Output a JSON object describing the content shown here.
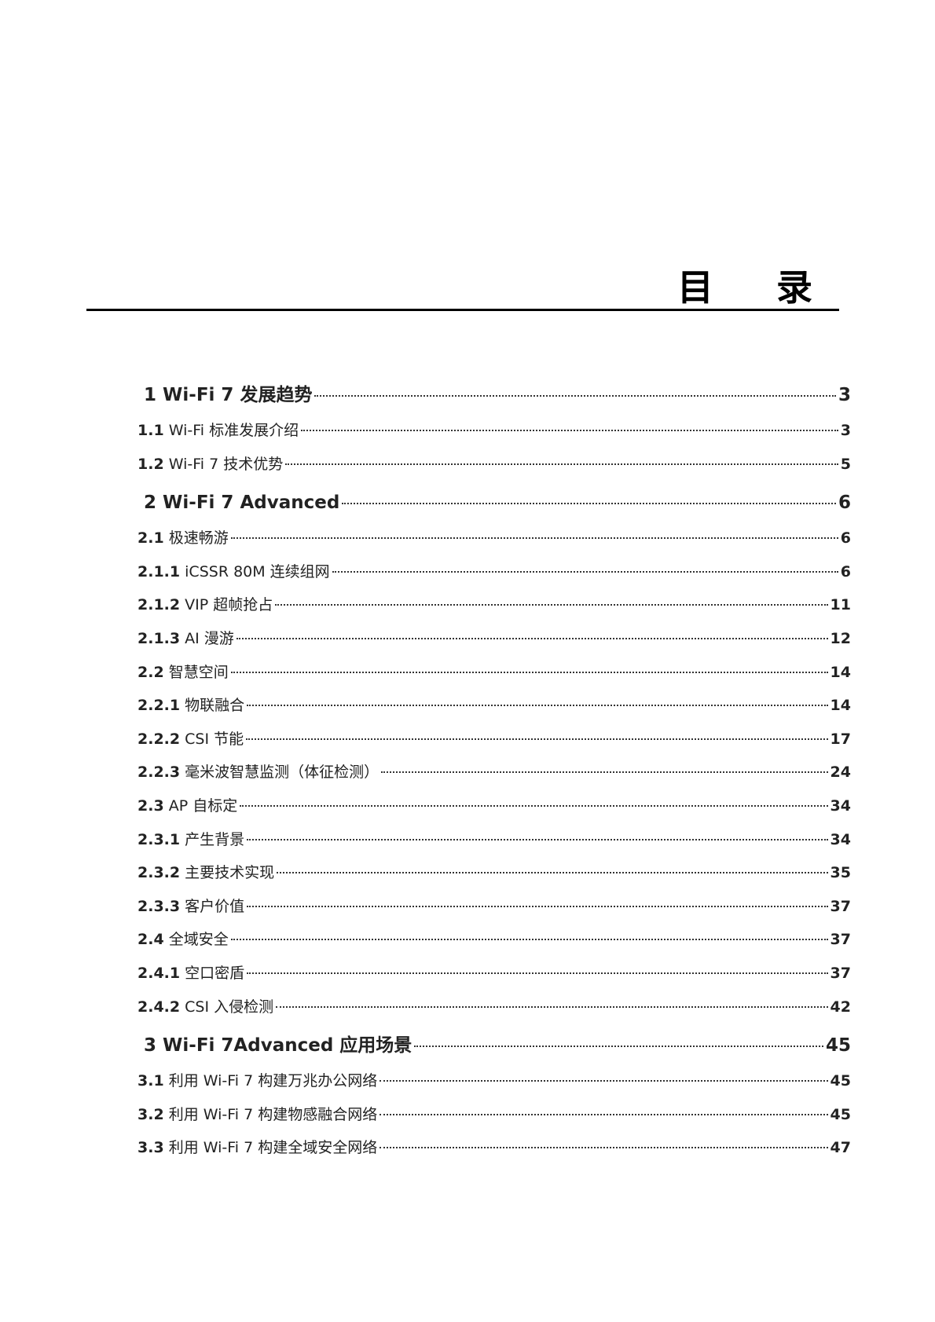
{
  "title": "目 录",
  "entries": [
    {
      "num": "1",
      "text": "Wi-Fi 7 发展趋势",
      "page": "3",
      "level": 1
    },
    {
      "num": "1.1",
      "text": "Wi-Fi 标准发展介绍",
      "page": "3",
      "level": 2
    },
    {
      "num": "1.2",
      "text": "Wi-Fi 7 技术优势",
      "page": "5",
      "level": 2
    },
    {
      "num": "2",
      "text": "Wi-Fi 7 Advanced",
      "page": "6",
      "level": 1
    },
    {
      "num": "2.1",
      "text": "极速畅游",
      "page": "6",
      "level": 2
    },
    {
      "num": "2.1.1",
      "text": "iCSSR 80M 连续组网",
      "page": "6",
      "level": 3
    },
    {
      "num": "2.1.2",
      "text": "VIP 超帧抢占",
      "page": "11",
      "level": 3
    },
    {
      "num": "2.1.3",
      "text": "AI 漫游",
      "page": "12",
      "level": 3
    },
    {
      "num": "2.2",
      "text": "智慧空间",
      "page": "14",
      "level": 2
    },
    {
      "num": "2.2.1",
      "text": "物联融合",
      "page": "14",
      "level": 3
    },
    {
      "num": "2.2.2",
      "text": "CSI 节能",
      "page": "17",
      "level": 3
    },
    {
      "num": "2.2.3",
      "text": "毫米波智慧监测（体征检测）",
      "page": "24",
      "level": 3
    },
    {
      "num": "2.3",
      "text": "AP 自标定",
      "page": "34",
      "level": 2
    },
    {
      "num": "2.3.1",
      "text": "产生背景",
      "page": "34",
      "level": 3
    },
    {
      "num": "2.3.2",
      "text": "主要技术实现",
      "page": "35",
      "level": 3
    },
    {
      "num": "2.3.3",
      "text": "客户价值",
      "page": "37",
      "level": 3
    },
    {
      "num": "2.4",
      "text": "全域安全",
      "page": "37",
      "level": 2
    },
    {
      "num": "2.4.1",
      "text": "空口密盾",
      "page": "37",
      "level": 3
    },
    {
      "num": "2.4.2",
      "text": "CSI 入侵检测",
      "page": "42",
      "level": 3
    },
    {
      "num": "3",
      "text": "Wi-Fi 7Advanced 应用场景",
      "page": "45",
      "level": 1
    },
    {
      "num": "3.1",
      "text": "利用 Wi-Fi 7 构建万兆办公网络",
      "page": "45",
      "level": 2
    },
    {
      "num": "3.2",
      "text": "利用 Wi-Fi 7 构建物感融合网络",
      "page": "45",
      "level": 2
    },
    {
      "num": "3.3",
      "text": "利用 Wi-Fi 7 构建全域安全网络",
      "page": "47",
      "level": 2
    }
  ]
}
